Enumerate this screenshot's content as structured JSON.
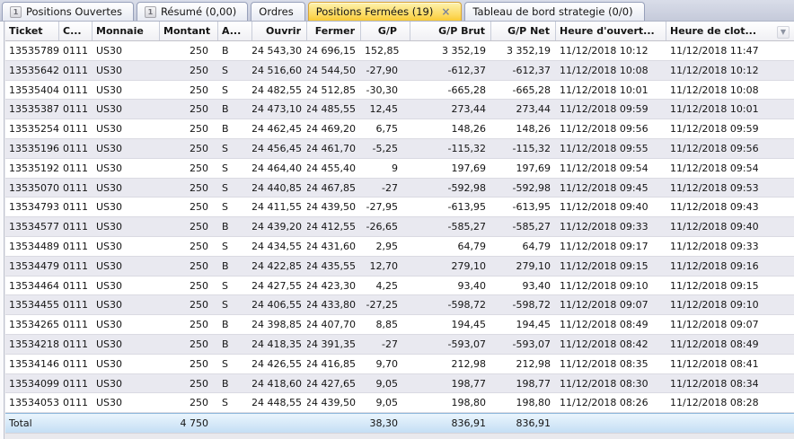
{
  "tabs": [
    {
      "label": "Positions Ouvertes",
      "badge": "1",
      "active": false
    },
    {
      "label": "Résumé (0,00)",
      "badge": "1",
      "active": false
    },
    {
      "label": "Ordres",
      "active": false
    },
    {
      "label": "Positions Fermées (19)",
      "active": true,
      "close_icon": "×"
    },
    {
      "label": "Tableau de bord strategie (0/0)",
      "active": false
    }
  ],
  "icons": {
    "sort_desc": "▼"
  },
  "colors": {
    "active_tab_yellow": "#fcd95e",
    "tabbar_background": "#c9cedd",
    "row_alt": "#e9e9f0",
    "total_row_blue": "#c4def4"
  },
  "table": {
    "columns": [
      {
        "key": "ticket",
        "label": "Ticket"
      },
      {
        "key": "compte",
        "label": "C..."
      },
      {
        "key": "monnaie",
        "label": "Monnaie"
      },
      {
        "key": "montant",
        "label": "Montant"
      },
      {
        "key": "achat",
        "label": "A..."
      },
      {
        "key": "ouvrir",
        "label": "Ouvrir"
      },
      {
        "key": "fermer",
        "label": "Fermer"
      },
      {
        "key": "gp",
        "label": "G/P"
      },
      {
        "key": "gp_brut",
        "label": "G/P Brut"
      },
      {
        "key": "gp_net",
        "label": "G/P Net"
      },
      {
        "key": "heure_ouvert",
        "label": "Heure d'ouvert..."
      },
      {
        "key": "heure_clot",
        "label": "Heure de clot..."
      }
    ],
    "rows": [
      {
        "ticket": "13535789",
        "compte": "0111",
        "monnaie": "US30",
        "montant": "250",
        "side": "B",
        "ouvrir": "24 543,30",
        "fermer": "24 696,15",
        "gp": "152,85",
        "gp_brut": "3 352,19",
        "gp_net": "3 352,19",
        "open_time": "11/12/2018 10:12",
        "close_time": "11/12/2018 11:47"
      },
      {
        "ticket": "13535642",
        "compte": "0111",
        "monnaie": "US30",
        "montant": "250",
        "side": "S",
        "ouvrir": "24 516,60",
        "fermer": "24 544,50",
        "gp": "-27,90",
        "gp_brut": "-612,37",
        "gp_net": "-612,37",
        "open_time": "11/12/2018 10:08",
        "close_time": "11/12/2018 10:12"
      },
      {
        "ticket": "13535404",
        "compte": "0111",
        "monnaie": "US30",
        "montant": "250",
        "side": "S",
        "ouvrir": "24 482,55",
        "fermer": "24 512,85",
        "gp": "-30,30",
        "gp_brut": "-665,28",
        "gp_net": "-665,28",
        "open_time": "11/12/2018 10:01",
        "close_time": "11/12/2018 10:08"
      },
      {
        "ticket": "13535387",
        "compte": "0111",
        "monnaie": "US30",
        "montant": "250",
        "side": "B",
        "ouvrir": "24 473,10",
        "fermer": "24 485,55",
        "gp": "12,45",
        "gp_brut": "273,44",
        "gp_net": "273,44",
        "open_time": "11/12/2018 09:59",
        "close_time": "11/12/2018 10:01"
      },
      {
        "ticket": "13535254",
        "compte": "0111",
        "monnaie": "US30",
        "montant": "250",
        "side": "B",
        "ouvrir": "24 462,45",
        "fermer": "24 469,20",
        "gp": "6,75",
        "gp_brut": "148,26",
        "gp_net": "148,26",
        "open_time": "11/12/2018 09:56",
        "close_time": "11/12/2018 09:59"
      },
      {
        "ticket": "13535196",
        "compte": "0111",
        "monnaie": "US30",
        "montant": "250",
        "side": "S",
        "ouvrir": "24 456,45",
        "fermer": "24 461,70",
        "gp": "-5,25",
        "gp_brut": "-115,32",
        "gp_net": "-115,32",
        "open_time": "11/12/2018 09:55",
        "close_time": "11/12/2018 09:56"
      },
      {
        "ticket": "13535192",
        "compte": "0111",
        "monnaie": "US30",
        "montant": "250",
        "side": "S",
        "ouvrir": "24 464,40",
        "fermer": "24 455,40",
        "gp": "9",
        "gp_brut": "197,69",
        "gp_net": "197,69",
        "open_time": "11/12/2018 09:54",
        "close_time": "11/12/2018 09:54"
      },
      {
        "ticket": "13535070",
        "compte": "0111",
        "monnaie": "US30",
        "montant": "250",
        "side": "S",
        "ouvrir": "24 440,85",
        "fermer": "24 467,85",
        "gp": "-27",
        "gp_brut": "-592,98",
        "gp_net": "-592,98",
        "open_time": "11/12/2018 09:45",
        "close_time": "11/12/2018 09:53"
      },
      {
        "ticket": "13534793",
        "compte": "0111",
        "monnaie": "US30",
        "montant": "250",
        "side": "S",
        "ouvrir": "24 411,55",
        "fermer": "24 439,50",
        "gp": "-27,95",
        "gp_brut": "-613,95",
        "gp_net": "-613,95",
        "open_time": "11/12/2018 09:40",
        "close_time": "11/12/2018 09:43"
      },
      {
        "ticket": "13534577",
        "compte": "0111",
        "monnaie": "US30",
        "montant": "250",
        "side": "B",
        "ouvrir": "24 439,20",
        "fermer": "24 412,55",
        "gp": "-26,65",
        "gp_brut": "-585,27",
        "gp_net": "-585,27",
        "open_time": "11/12/2018 09:33",
        "close_time": "11/12/2018 09:40"
      },
      {
        "ticket": "13534489",
        "compte": "0111",
        "monnaie": "US30",
        "montant": "250",
        "side": "S",
        "ouvrir": "24 434,55",
        "fermer": "24 431,60",
        "gp": "2,95",
        "gp_brut": "64,79",
        "gp_net": "64,79",
        "open_time": "11/12/2018 09:17",
        "close_time": "11/12/2018 09:33"
      },
      {
        "ticket": "13534479",
        "compte": "0111",
        "monnaie": "US30",
        "montant": "250",
        "side": "B",
        "ouvrir": "24 422,85",
        "fermer": "24 435,55",
        "gp": "12,70",
        "gp_brut": "279,10",
        "gp_net": "279,10",
        "open_time": "11/12/2018 09:15",
        "close_time": "11/12/2018 09:16"
      },
      {
        "ticket": "13534464",
        "compte": "0111",
        "monnaie": "US30",
        "montant": "250",
        "side": "S",
        "ouvrir": "24 427,55",
        "fermer": "24 423,30",
        "gp": "4,25",
        "gp_brut": "93,40",
        "gp_net": "93,40",
        "open_time": "11/12/2018 09:10",
        "close_time": "11/12/2018 09:15"
      },
      {
        "ticket": "13534455",
        "compte": "0111",
        "monnaie": "US30",
        "montant": "250",
        "side": "S",
        "ouvrir": "24 406,55",
        "fermer": "24 433,80",
        "gp": "-27,25",
        "gp_brut": "-598,72",
        "gp_net": "-598,72",
        "open_time": "11/12/2018 09:07",
        "close_time": "11/12/2018 09:10"
      },
      {
        "ticket": "13534265",
        "compte": "0111",
        "monnaie": "US30",
        "montant": "250",
        "side": "B",
        "ouvrir": "24 398,85",
        "fermer": "24 407,70",
        "gp": "8,85",
        "gp_brut": "194,45",
        "gp_net": "194,45",
        "open_time": "11/12/2018 08:49",
        "close_time": "11/12/2018 09:07"
      },
      {
        "ticket": "13534218",
        "compte": "0111",
        "monnaie": "US30",
        "montant": "250",
        "side": "B",
        "ouvrir": "24 418,35",
        "fermer": "24 391,35",
        "gp": "-27",
        "gp_brut": "-593,07",
        "gp_net": "-593,07",
        "open_time": "11/12/2018 08:42",
        "close_time": "11/12/2018 08:49"
      },
      {
        "ticket": "13534146",
        "compte": "0111",
        "monnaie": "US30",
        "montant": "250",
        "side": "S",
        "ouvrir": "24 426,55",
        "fermer": "24 416,85",
        "gp": "9,70",
        "gp_brut": "212,98",
        "gp_net": "212,98",
        "open_time": "11/12/2018 08:35",
        "close_time": "11/12/2018 08:41"
      },
      {
        "ticket": "13534099",
        "compte": "0111",
        "monnaie": "US30",
        "montant": "250",
        "side": "B",
        "ouvrir": "24 418,60",
        "fermer": "24 427,65",
        "gp": "9,05",
        "gp_brut": "198,77",
        "gp_net": "198,77",
        "open_time": "11/12/2018 08:30",
        "close_time": "11/12/2018 08:34"
      },
      {
        "ticket": "13534053",
        "compte": "0111",
        "monnaie": "US30",
        "montant": "250",
        "side": "S",
        "ouvrir": "24 448,55",
        "fermer": "24 439,50",
        "gp": "9,05",
        "gp_brut": "198,80",
        "gp_net": "198,80",
        "open_time": "11/12/2018 08:26",
        "close_time": "11/12/2018 08:28"
      }
    ],
    "total": {
      "label": "Total",
      "montant": "4 750",
      "gp": "38,30",
      "gp_brut": "836,91",
      "gp_net": "836,91"
    }
  }
}
